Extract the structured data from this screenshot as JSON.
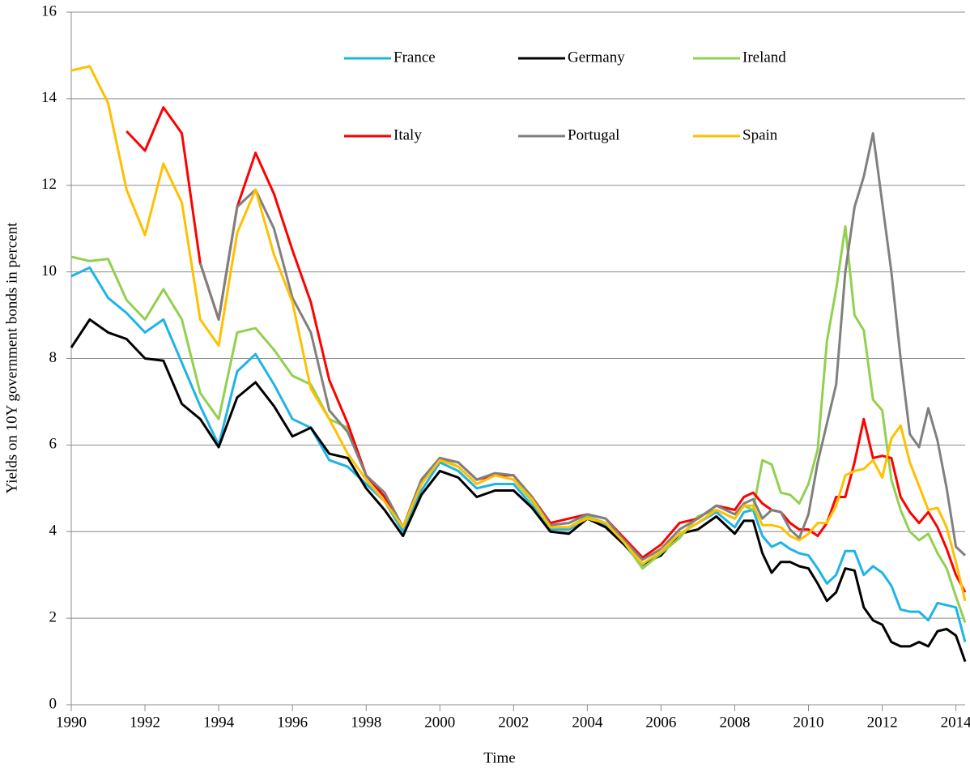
{
  "chart_data": {
    "type": "line",
    "xlabel": "Time",
    "ylabel": "Yields on 10Y government bonds in percent",
    "x": [
      1990,
      1990.5,
      1991,
      1991.5,
      1992,
      1992.5,
      1993,
      1993.5,
      1994,
      1994.5,
      1995,
      1995.5,
      1996,
      1996.5,
      1997,
      1997.5,
      1998,
      1998.5,
      1999,
      1999.5,
      2000,
      2000.5,
      2001,
      2001.5,
      2002,
      2002.5,
      2003,
      2003.5,
      2004,
      2004.5,
      2005,
      2005.5,
      2006,
      2006.5,
      2007,
      2007.5,
      2008,
      2008.25,
      2008.5,
      2008.75,
      2009,
      2009.25,
      2009.5,
      2009.75,
      2010,
      2010.25,
      2010.5,
      2010.75,
      2011,
      2011.25,
      2011.5,
      2011.75,
      2012,
      2012.25,
      2012.5,
      2012.75,
      2013,
      2013.25,
      2013.5,
      2013.75,
      2014,
      2014.25
    ],
    "series": [
      {
        "name": "France",
        "color": "#1fb4e6",
        "values": [
          9.9,
          10.1,
          9.4,
          9.05,
          8.6,
          8.9,
          7.9,
          6.9,
          6.0,
          7.7,
          8.1,
          7.4,
          6.6,
          6.4,
          5.65,
          5.5,
          5.1,
          4.7,
          4.0,
          4.95,
          5.6,
          5.4,
          5.0,
          5.1,
          5.1,
          4.6,
          4.05,
          4.05,
          4.3,
          4.15,
          3.7,
          3.2,
          3.5,
          3.95,
          4.2,
          4.45,
          4.1,
          4.45,
          4.5,
          3.9,
          3.65,
          3.75,
          3.6,
          3.5,
          3.45,
          3.15,
          2.8,
          3.0,
          3.55,
          3.55,
          3.0,
          3.2,
          3.05,
          2.75,
          2.2,
          2.15,
          2.15,
          1.95,
          2.35,
          2.3,
          2.25,
          1.45
        ]
      },
      {
        "name": "Germany",
        "color": "#000000",
        "values": [
          8.25,
          8.9,
          8.6,
          8.45,
          8.0,
          7.95,
          6.95,
          6.6,
          5.95,
          7.1,
          7.45,
          6.9,
          6.2,
          6.4,
          5.8,
          5.7,
          5.0,
          4.5,
          3.9,
          4.85,
          5.4,
          5.25,
          4.8,
          4.95,
          4.95,
          4.55,
          4.0,
          3.95,
          4.3,
          4.1,
          3.7,
          3.25,
          3.45,
          3.95,
          4.05,
          4.35,
          3.95,
          4.25,
          4.25,
          3.5,
          3.05,
          3.3,
          3.3,
          3.2,
          3.15,
          2.8,
          2.4,
          2.6,
          3.15,
          3.1,
          2.25,
          1.95,
          1.85,
          1.45,
          1.35,
          1.35,
          1.45,
          1.35,
          1.7,
          1.75,
          1.6,
          1.0
        ]
      },
      {
        "name": "Ireland",
        "color": "#92d050",
        "values": [
          10.35,
          10.25,
          10.3,
          9.35,
          8.9,
          9.6,
          8.9,
          7.2,
          6.6,
          8.6,
          8.7,
          8.2,
          7.6,
          7.4,
          6.6,
          6.4,
          5.3,
          4.8,
          4.1,
          5.1,
          5.7,
          5.5,
          5.1,
          5.3,
          5.2,
          4.7,
          4.1,
          4.1,
          4.35,
          4.2,
          3.75,
          3.15,
          3.5,
          3.85,
          4.35,
          4.5,
          4.3,
          4.6,
          4.5,
          5.65,
          5.55,
          4.9,
          4.85,
          4.65,
          5.1,
          5.9,
          8.4,
          9.6,
          11.05,
          9.0,
          8.65,
          7.05,
          6.8,
          5.2,
          4.5,
          4.0,
          3.8,
          3.95,
          3.5,
          3.15,
          2.5,
          1.9
        ]
      },
      {
        "name": "Italy",
        "color": "#ff0000",
        "values": [
          null,
          null,
          null,
          13.25,
          12.8,
          13.8,
          13.2,
          10.2,
          8.9,
          11.5,
          12.75,
          11.8,
          10.5,
          9.3,
          7.5,
          6.5,
          5.3,
          4.8,
          4.1,
          5.2,
          5.7,
          5.6,
          5.2,
          5.3,
          5.3,
          4.8,
          4.2,
          4.3,
          4.4,
          4.3,
          3.85,
          3.4,
          3.7,
          4.2,
          4.3,
          4.6,
          4.5,
          4.8,
          4.9,
          4.65,
          4.5,
          4.45,
          4.2,
          4.05,
          4.05,
          3.9,
          4.2,
          4.8,
          4.8,
          5.6,
          6.6,
          5.7,
          5.75,
          5.7,
          4.8,
          4.45,
          4.2,
          4.45,
          4.1,
          3.6,
          3.0,
          2.6
        ]
      },
      {
        "name": "Portugal",
        "color": "#808080",
        "values": [
          null,
          null,
          null,
          null,
          null,
          null,
          null,
          10.2,
          8.9,
          11.5,
          11.9,
          11.0,
          9.4,
          8.6,
          6.8,
          6.3,
          5.3,
          4.9,
          4.1,
          5.2,
          5.7,
          5.6,
          5.2,
          5.35,
          5.3,
          4.8,
          4.15,
          4.2,
          4.4,
          4.3,
          3.8,
          3.35,
          3.6,
          4.05,
          4.3,
          4.6,
          4.4,
          4.65,
          4.75,
          4.3,
          4.5,
          4.45,
          4.05,
          3.85,
          4.4,
          5.6,
          6.5,
          7.4,
          10.0,
          11.5,
          12.2,
          13.2,
          11.6,
          10.0,
          8.0,
          6.25,
          5.95,
          6.85,
          6.1,
          5.0,
          3.65,
          3.45
        ]
      },
      {
        "name": "Spain",
        "color": "#ffc000",
        "values": [
          14.65,
          14.75,
          13.9,
          11.9,
          10.85,
          12.5,
          11.6,
          8.9,
          8.3,
          10.9,
          11.9,
          10.4,
          9.3,
          7.3,
          6.6,
          5.8,
          5.2,
          4.7,
          4.1,
          5.1,
          5.65,
          5.5,
          5.1,
          5.3,
          5.2,
          4.75,
          4.1,
          4.1,
          4.3,
          4.2,
          3.75,
          3.25,
          3.55,
          3.95,
          4.2,
          4.5,
          4.3,
          4.6,
          4.6,
          4.15,
          4.15,
          4.1,
          3.9,
          3.8,
          3.95,
          4.2,
          4.2,
          4.6,
          5.3,
          5.4,
          5.45,
          5.65,
          5.25,
          6.15,
          6.45,
          5.6,
          5.05,
          4.5,
          4.55,
          4.1,
          3.3,
          2.4
        ]
      }
    ],
    "xlim": [
      1990,
      2014.25
    ],
    "xticks": [
      1990,
      1992,
      1994,
      1996,
      1998,
      2000,
      2002,
      2004,
      2006,
      2008,
      2010,
      2012,
      2014
    ],
    "ylim": [
      0,
      16
    ],
    "yticks": [
      0,
      2,
      4,
      6,
      8,
      10,
      12,
      14,
      16
    ],
    "grid": true
  }
}
